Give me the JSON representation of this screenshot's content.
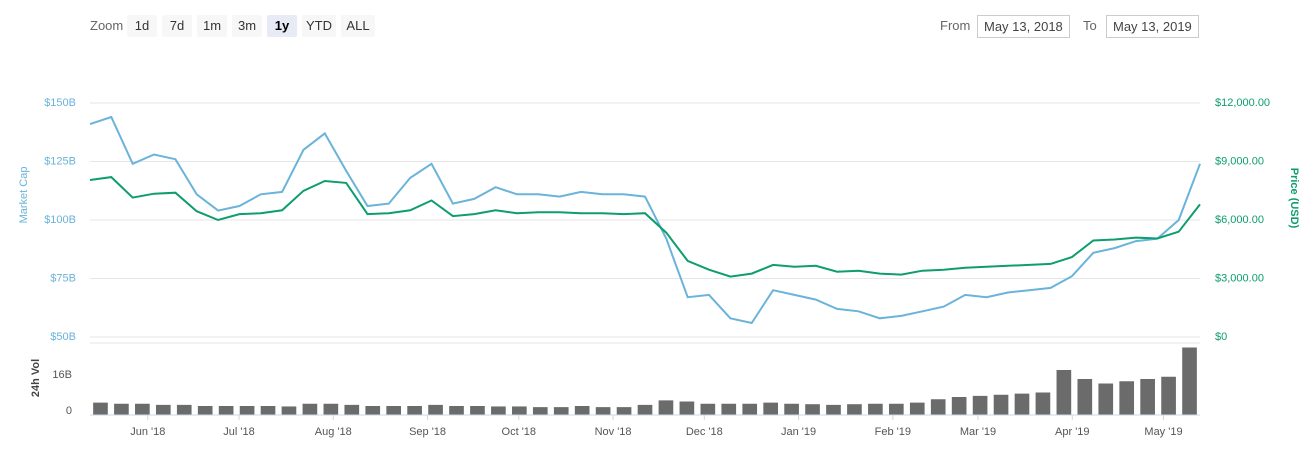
{
  "controls": {
    "zoom_label": "Zoom",
    "zoom_buttons": [
      "1d",
      "7d",
      "1m",
      "3m",
      "1y",
      "YTD",
      "ALL"
    ],
    "selected_zoom": 4,
    "from_label": "From",
    "from_value": "May 13, 2018",
    "to_label": "To",
    "to_value": "May 13, 2019"
  },
  "chart_data": [
    {
      "type": "line",
      "ylabel": "Market Cap",
      "y2label": "Price (USD)",
      "grid": true,
      "ylim": [
        50,
        150
      ],
      "yticks": [
        {
          "value": 50,
          "label": "$50B"
        },
        {
          "value": 75,
          "label": "$75B"
        },
        {
          "value": 100,
          "label": "$100B"
        },
        {
          "value": 125,
          "label": "$125B"
        },
        {
          "value": 150,
          "label": "$150B"
        }
      ],
      "y2lim": [
        0,
        12000
      ],
      "y2ticks": [
        {
          "value": 0,
          "label": "$0"
        },
        {
          "value": 3000,
          "label": "$3,000.00"
        },
        {
          "value": 6000,
          "label": "$6,000.00"
        },
        {
          "value": 9000,
          "label": "$9,000.00"
        },
        {
          "value": 12000,
          "label": "$12,000.00"
        }
      ],
      "series": [
        {
          "color": "#6ab3da",
          "values": [
            141,
            144,
            124,
            128,
            126,
            111,
            104,
            106,
            111,
            112,
            130,
            137,
            121,
            106,
            107,
            118,
            124,
            107,
            109,
            114,
            111,
            111,
            110,
            112,
            111,
            111,
            110,
            92,
            67,
            68,
            58,
            56,
            70,
            68,
            66,
            62,
            61,
            58,
            59,
            61,
            63,
            68,
            67,
            69,
            70,
            71,
            76,
            86,
            88,
            91,
            92,
            100,
            124
          ]
        },
        {
          "color": "#0e9d6d",
          "axis": "y2",
          "values": [
            8050,
            8200,
            7150,
            7350,
            7400,
            6450,
            6000,
            6300,
            6350,
            6500,
            7500,
            8000,
            7900,
            6300,
            6350,
            6500,
            7000,
            6200,
            6300,
            6500,
            6350,
            6400,
            6400,
            6350,
            6350,
            6300,
            6350,
            5350,
            3900,
            3450,
            3100,
            3250,
            3700,
            3600,
            3650,
            3350,
            3400,
            3250,
            3200,
            3400,
            3450,
            3550,
            3600,
            3650,
            3700,
            3750,
            4100,
            4950,
            5000,
            5100,
            5050,
            5400,
            6800
          ]
        }
      ]
    },
    {
      "type": "bar",
      "ylabel": "24h Vol",
      "color": "#6b6b6b",
      "ylim": [
        0,
        32
      ],
      "yticks": [
        0,
        {
          "value": 16,
          "label": "16B"
        }
      ],
      "values": [
        5.5,
        5,
        5,
        4.5,
        4.5,
        4,
        4,
        4,
        4,
        3.8,
        5,
        5,
        4.5,
        4,
        4,
        4,
        4.5,
        4,
        4,
        3.8,
        3.8,
        3.5,
        3.5,
        4,
        3.5,
        3.5,
        4.5,
        6.5,
        6,
        5,
        5,
        5,
        5.5,
        5,
        4.8,
        4.5,
        4.8,
        5,
        5,
        5.5,
        7,
        8,
        8.5,
        9,
        9.5,
        10,
        20,
        16,
        14,
        15,
        16,
        17,
        30
      ],
      "xticks": [
        {
          "value": "2018-06",
          "label": "Jun '18"
        },
        {
          "value": "2018-07",
          "label": "Jul '18"
        },
        {
          "value": "2018-08",
          "label": "Aug '18"
        },
        {
          "value": "2018-09",
          "label": "Sep '18"
        },
        {
          "value": "2018-10",
          "label": "Oct '18"
        },
        {
          "value": "2018-11",
          "label": "Nov '18"
        },
        {
          "value": "2018-12",
          "label": "Dec '18"
        },
        {
          "value": "2019-01",
          "label": "Jan '19"
        },
        {
          "value": "2019-02",
          "label": "Feb '19"
        },
        {
          "value": "2019-03",
          "label": "Mar '19"
        },
        {
          "value": "2019-04",
          "label": "Apr '19"
        },
        {
          "value": "2019-05",
          "label": "May '19"
        }
      ]
    }
  ]
}
